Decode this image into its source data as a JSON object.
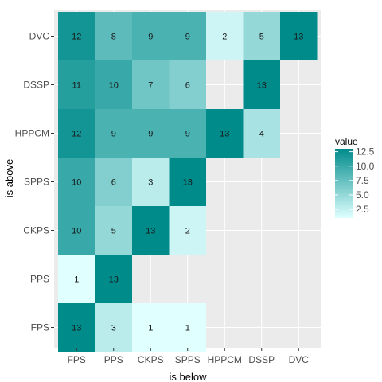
{
  "chart_data": {
    "type": "heatmap",
    "xlabel": "is below",
    "ylabel": "is above",
    "x_categories": [
      "FPS",
      "PPS",
      "CKPS",
      "SPPS",
      "HPPCM",
      "DSSP",
      "DVC"
    ],
    "y_categories": [
      "DVC",
      "DSSP",
      "HPPCM",
      "SPPS",
      "CKPS",
      "PPS",
      "FPS"
    ],
    "cells": [
      {
        "x": "FPS",
        "y": "DVC",
        "value": 12
      },
      {
        "x": "PPS",
        "y": "DVC",
        "value": 8
      },
      {
        "x": "CKPS",
        "y": "DVC",
        "value": 9
      },
      {
        "x": "SPPS",
        "y": "DVC",
        "value": 9
      },
      {
        "x": "HPPCM",
        "y": "DVC",
        "value": 2
      },
      {
        "x": "DSSP",
        "y": "DVC",
        "value": 5
      },
      {
        "x": "DVC",
        "y": "DVC",
        "value": 13
      },
      {
        "x": "FPS",
        "y": "DSSP",
        "value": 11
      },
      {
        "x": "PPS",
        "y": "DSSP",
        "value": 10
      },
      {
        "x": "CKPS",
        "y": "DSSP",
        "value": 7
      },
      {
        "x": "SPPS",
        "y": "DSSP",
        "value": 6
      },
      {
        "x": "DSSP",
        "y": "DSSP",
        "value": 13
      },
      {
        "x": "FPS",
        "y": "HPPCM",
        "value": 12
      },
      {
        "x": "PPS",
        "y": "HPPCM",
        "value": 9
      },
      {
        "x": "CKPS",
        "y": "HPPCM",
        "value": 9
      },
      {
        "x": "SPPS",
        "y": "HPPCM",
        "value": 9
      },
      {
        "x": "HPPCM",
        "y": "HPPCM",
        "value": 13
      },
      {
        "x": "DSSP",
        "y": "HPPCM",
        "value": 4
      },
      {
        "x": "FPS",
        "y": "SPPS",
        "value": 10
      },
      {
        "x": "PPS",
        "y": "SPPS",
        "value": 6
      },
      {
        "x": "CKPS",
        "y": "SPPS",
        "value": 3
      },
      {
        "x": "SPPS",
        "y": "SPPS",
        "value": 13
      },
      {
        "x": "FPS",
        "y": "CKPS",
        "value": 10
      },
      {
        "x": "PPS",
        "y": "CKPS",
        "value": 5
      },
      {
        "x": "CKPS",
        "y": "CKPS",
        "value": 13
      },
      {
        "x": "SPPS",
        "y": "CKPS",
        "value": 2
      },
      {
        "x": "FPS",
        "y": "PPS",
        "value": 1
      },
      {
        "x": "PPS",
        "y": "PPS",
        "value": 13
      },
      {
        "x": "FPS",
        "y": "FPS",
        "value": 13
      },
      {
        "x": "PPS",
        "y": "FPS",
        "value": 3
      },
      {
        "x": "CKPS",
        "y": "FPS",
        "value": 1
      },
      {
        "x": "SPPS",
        "y": "FPS",
        "value": 1
      }
    ],
    "legend": {
      "title": "value",
      "breaks": [
        12.5,
        10.0,
        7.5,
        5.0,
        2.5
      ],
      "break_labels": [
        "12.5",
        "10.0",
        "7.5",
        "5.0",
        "2.5"
      ],
      "placement": "right"
    },
    "color_scale": {
      "low": "#e0ffff",
      "high": "#008b8b",
      "min": 1,
      "max": 13
    },
    "panel_background": "#ebebeb",
    "grid": true
  }
}
